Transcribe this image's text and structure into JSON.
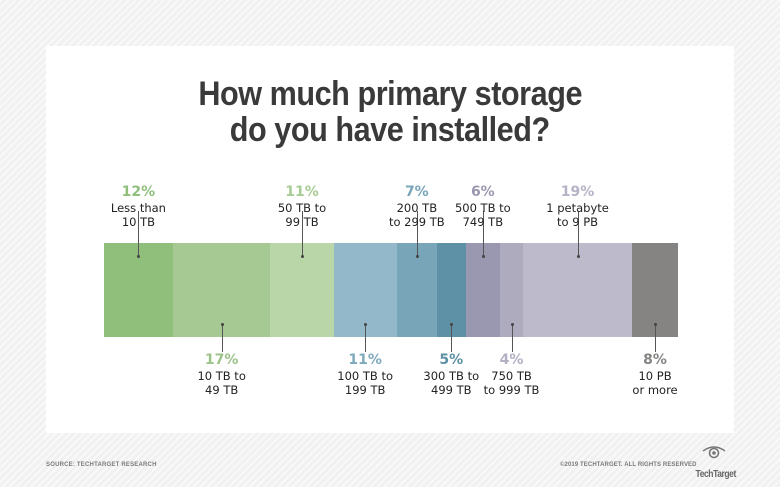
{
  "title_line1": "How much primary storage",
  "title_line2": "do you have installed?",
  "footer": {
    "source": "SOURCE: TECHTARGET RESEARCH",
    "copyright": "©2019 TECHTARGET. ALL RIGHTS RESERVED",
    "logo": "TechTarget",
    "logo_icon": "eye-icon"
  },
  "segments": [
    {
      "pct": "12%",
      "l1": "Less than",
      "l2": "10 TB",
      "color": "#8fbf7a",
      "pct_color": "#8fbf7a",
      "pos": "top"
    },
    {
      "pct": "17%",
      "l1": "10 TB to",
      "l2": "49 TB",
      "color": "#a6c993",
      "pct_color": "#9cc388",
      "pos": "bottom"
    },
    {
      "pct": "11%",
      "l1": "50 TB to",
      "l2": "99 TB",
      "color": "#b9d6a9",
      "pct_color": "#a8cc95",
      "pos": "top"
    },
    {
      "pct": "11%",
      "l1": "100 TB to",
      "l2": "199 TB",
      "color": "#93b8c9",
      "pct_color": "#7fa9bd",
      "pos": "bottom"
    },
    {
      "pct": "7%",
      "l1": "200 TB",
      "l2": "to 299 TB",
      "color": "#79a5b8",
      "pct_color": "#79a5b8",
      "pos": "top"
    },
    {
      "pct": "5%",
      "l1": "300 TB to",
      "l2": "499 TB",
      "color": "#5e90a6",
      "pct_color": "#5e90a6",
      "pos": "bottom"
    },
    {
      "pct": "6%",
      "l1": "500 TB to",
      "l2": "749 TB",
      "color": "#9a98b0",
      "pct_color": "#9a98b0",
      "pos": "top"
    },
    {
      "pct": "4%",
      "l1": "750 TB",
      "l2": "to 999 TB",
      "color": "#aeabbf",
      "pct_color": "#b3b0c4",
      "pos": "bottom"
    },
    {
      "pct": "19%",
      "l1": "1 petabyte",
      "l2": "to 9 PB",
      "color": "#bcbacb",
      "pct_color": "#b6b3c7",
      "pos": "top"
    },
    {
      "pct": "8%",
      "l1": "10 PB",
      "l2": "or more",
      "color": "#858482",
      "pct_color": "#858482",
      "pos": "bottom"
    }
  ],
  "chart_data": {
    "type": "bar",
    "subtype": "100% stacked horizontal bar",
    "title": "How much primary storage do you have installed?",
    "categories": [
      "Less than 10 TB",
      "10 TB to 49 TB",
      "50 TB to 99 TB",
      "100 TB to 199 TB",
      "200 TB to 299 TB",
      "300 TB to 499 TB",
      "500 TB to 749 TB",
      "750 TB to 999 TB",
      "1 petabyte to 9 PB",
      "10 PB or more"
    ],
    "values": [
      12,
      17,
      11,
      11,
      7,
      5,
      6,
      4,
      19,
      8
    ],
    "unit": "%",
    "xlabel": "",
    "ylabel": "",
    "source": "SOURCE: TECHTARGET RESEARCH"
  }
}
